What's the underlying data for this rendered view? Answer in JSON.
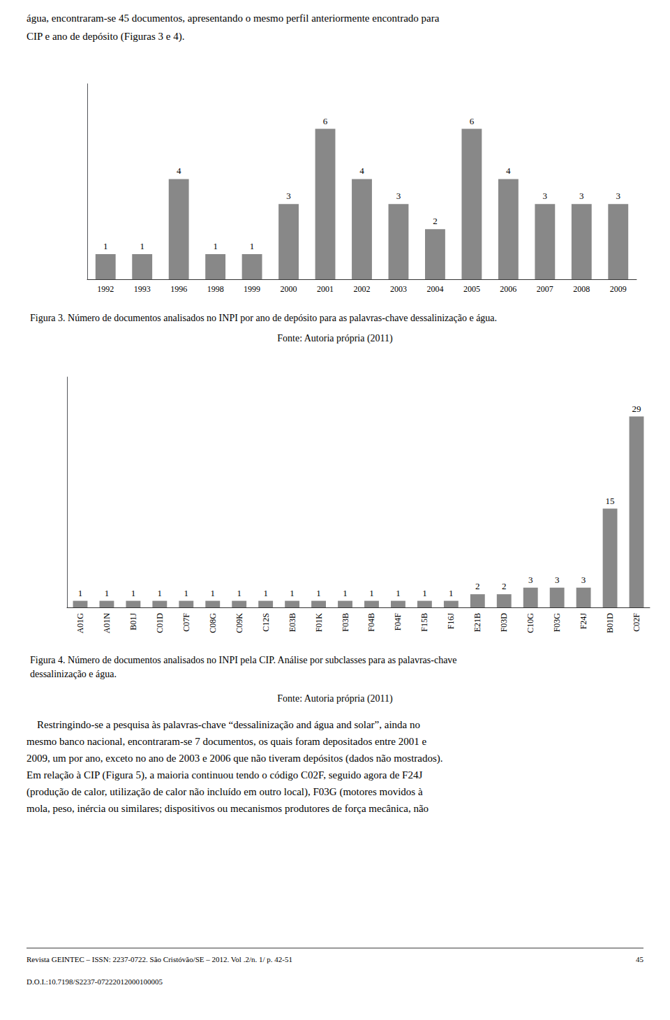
{
  "chart_data": [
    {
      "type": "bar",
      "title": "Figura 3. Número de documentos analisados no INPI por ano de depósito para as palavras-chave dessalinização e água.",
      "subtitle": "Fonte: Autoria própria (2011)",
      "categories": [
        "1992",
        "1993",
        "1996",
        "1998",
        "1999",
        "2000",
        "2001",
        "2002",
        "2003",
        "2004",
        "2005",
        "2006",
        "2007",
        "2008",
        "2009"
      ],
      "values": [
        1,
        1,
        4,
        1,
        1,
        3,
        6,
        4,
        3,
        2,
        6,
        4,
        3,
        3,
        3
      ],
      "color": "#888888",
      "ylim": [
        0,
        7.8
      ],
      "grid": false,
      "data_labels": true,
      "tick_labels": "x",
      "annotations": [
        "água, encontraram-se 45 documentos, apresentando o mesmo perfil anteriormente encontrado para",
        "CIP e ano de depósito (Figuras 3 e 4)."
      ]
    },
    {
      "type": "bar",
      "title": "Figura 4. Número de documentos analisados no INPI pela CIP. Análise por subclasses para as palavras-chave\ndessalinização e água.",
      "subtitle": "Fonte: Autoria própria (2011)",
      "categories": [
        "A01G",
        "A01N",
        "B01J",
        "C01D",
        "C07F",
        "C08G",
        "C09K",
        "C12S",
        "E03B",
        "F01K",
        "F03B",
        "F04B",
        "F04F",
        "F15B",
        "F16J",
        "E21B",
        "F03D",
        "C10G",
        "F03G",
        "F24J",
        "B01D",
        "C02F"
      ],
      "values": [
        1,
        1,
        1,
        1,
        1,
        1,
        1,
        1,
        1,
        1,
        1,
        1,
        1,
        1,
        1,
        2,
        2,
        3,
        3,
        3,
        15,
        29
      ],
      "color": "#888888",
      "ylim": [
        0,
        35
      ],
      "grid": false,
      "data_labels": true,
      "tick_labels": "x",
      "annotations": [
        "    Restringindo-se a pesquisa às palavras-chave “dessalinização and água and solar”, ainda no",
        "mesmo banco nacional, encontraram-se 7 documentos, os quais foram depositados entre 2001 e",
        "2009, um por ano, exceto no ano de 2003 e 2006 que não tiveram depósitos (dados não mostrados).",
        "Em relação à CIP (Figura 5), a maioria continuou tendo o código C02F, seguido agora de F24J",
        "(produção de calor, utilização de calor não incluído em outro local), F03G (motores movidos à",
        "mola, peso, inércia ou similares; dispositivos ou mecanismos produtores de força mecânica, não",
        "Revista GEINTEC – ISSN: 2237-0722. São Cristóvão/SE – 2012. Vol .2/n. 1/ p. 42-51",
        "45",
        "D.O.I.:10.7198/S2237-07222012000100005"
      ]
    }
  ]
}
